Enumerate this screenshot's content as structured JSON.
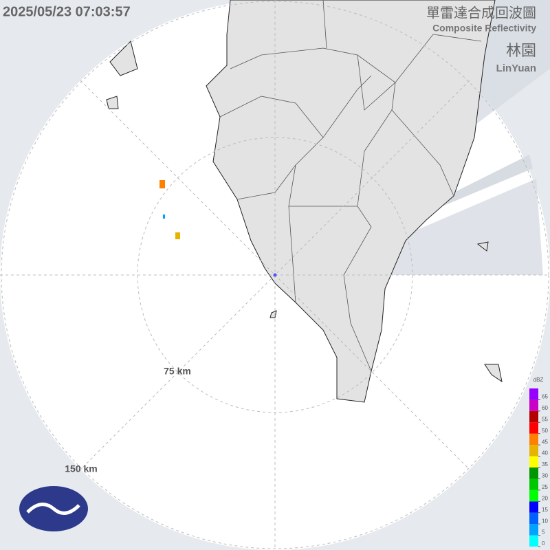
{
  "header": {
    "timestamp": "2025/05/23 07:03:57",
    "title": "單雷達合成回波圖",
    "subtitle": "Composite Reflectivity",
    "station": "林園",
    "station_en": "LinYuan"
  },
  "range_rings": [
    "75 km",
    "150 km"
  ],
  "color_scale": {
    "unit": "dBZ",
    "ticks": [
      0,
      5,
      10,
      15,
      20,
      25,
      30,
      35,
      40,
      45,
      50,
      55,
      60,
      65
    ],
    "colors": [
      "#00ffff",
      "#00a2ff",
      "#0061ff",
      "#0000ff",
      "#00ff00",
      "#00c800",
      "#009600",
      "#ffff00",
      "#e6b400",
      "#ff8000",
      "#ff0000",
      "#b40000",
      "#c800c8",
      "#9600ff"
    ]
  }
}
